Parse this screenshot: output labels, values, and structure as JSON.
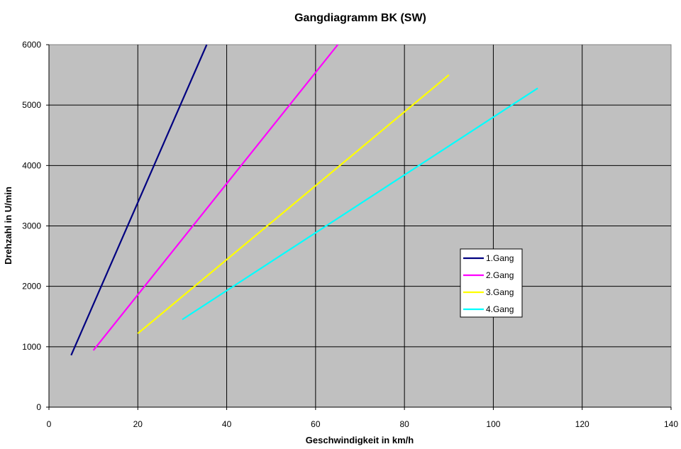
{
  "chart_data": {
    "type": "line",
    "title": "Gangdiagramm BK (SW)",
    "xlabel": "Geschwindigkeit in km/h",
    "ylabel": "Drehzahl in U/min",
    "xlim": [
      0,
      140
    ],
    "ylim": [
      0,
      6000
    ],
    "xticks": [
      "0",
      "20",
      "40",
      "60",
      "80",
      "100",
      "120",
      "140"
    ],
    "yticks": [
      "0",
      "1000",
      "2000",
      "3000",
      "4000",
      "5000",
      "6000"
    ],
    "grid": true,
    "plot_background": "#c0c0c0",
    "legend_position": "right",
    "series": [
      {
        "name": "1.Gang",
        "color": "#000080",
        "points": [
          [
            5,
            860
          ],
          [
            35.5,
            6000
          ]
        ]
      },
      {
        "name": "2.Gang",
        "color": "#ff00ff",
        "points": [
          [
            10,
            940
          ],
          [
            65,
            6000
          ]
        ]
      },
      {
        "name": "3.Gang",
        "color": "#ffff00",
        "points": [
          [
            20,
            1220
          ],
          [
            90,
            5500
          ]
        ]
      },
      {
        "name": "4.Gang",
        "color": "#00ffff",
        "points": [
          [
            30,
            1450
          ],
          [
            110,
            5280
          ]
        ]
      }
    ]
  }
}
